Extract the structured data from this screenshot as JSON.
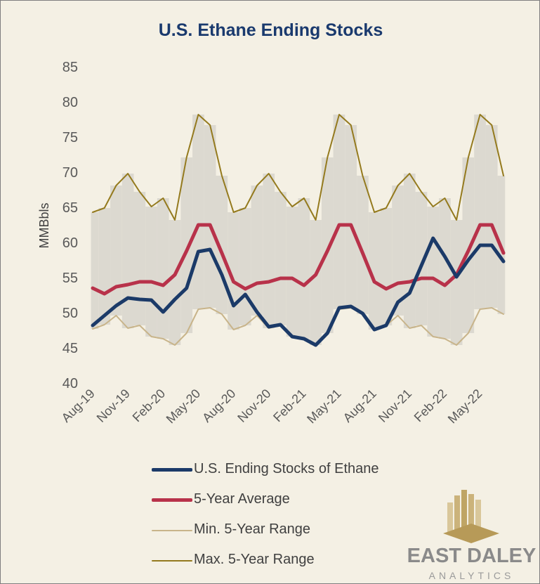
{
  "chart_data": {
    "type": "line",
    "title": "U.S. Ethane Ending Stocks",
    "ylabel": "MMBbls",
    "xlabel": "",
    "ylim": [
      40,
      85
    ],
    "yticks": [
      40,
      45,
      50,
      55,
      60,
      65,
      70,
      75,
      80,
      85
    ],
    "x": [
      "Aug-19",
      "Sep-19",
      "Oct-19",
      "Nov-19",
      "Dec-19",
      "Jan-20",
      "Feb-20",
      "Mar-20",
      "Apr-20",
      "May-20",
      "Jun-20",
      "Jul-20",
      "Aug-20",
      "Sep-20",
      "Oct-20",
      "Nov-20",
      "Dec-20",
      "Jan-21",
      "Feb-21",
      "Mar-21",
      "Apr-21",
      "May-21",
      "Jun-21",
      "Jul-21",
      "Aug-21",
      "Sep-21",
      "Oct-21",
      "Nov-21",
      "Dec-21",
      "Jan-22",
      "Feb-22",
      "Mar-22",
      "Apr-22",
      "May-22",
      "Jun-22",
      "Jul-22"
    ],
    "xtick_labels": [
      "Aug-19",
      "Nov-19",
      "Feb-20",
      "May-20",
      "Aug-20",
      "Nov-20",
      "Feb-21",
      "May-21",
      "Aug-21",
      "Nov-21",
      "Feb-22",
      "May-22"
    ],
    "xtick_index": [
      0,
      3,
      6,
      9,
      12,
      15,
      18,
      21,
      24,
      27,
      30,
      33
    ],
    "grid": false,
    "legend_position": "bottom",
    "range_fill": {
      "color": "#dcd9d0",
      "lower": "Min. 5-Year Range",
      "upper": "Max. 5-Year Range"
    },
    "series": [
      {
        "name": "U.S. Ending Stocks of Ethane",
        "color": "#1b3a68",
        "width": 5,
        "values": [
          48.2,
          49.6,
          51.0,
          52.1,
          51.9,
          51.8,
          50.1,
          51.9,
          53.5,
          58.7,
          59.0,
          55.4,
          51.0,
          52.6,
          50.1,
          48.0,
          48.3,
          46.6,
          46.3,
          45.4,
          47.1,
          50.7,
          50.9,
          49.9,
          47.6,
          48.2,
          51.5,
          52.8,
          56.7,
          60.6,
          58.0,
          55.1,
          57.5,
          59.6,
          59.6,
          57.3
        ]
      },
      {
        "name": "5-Year Average",
        "color": "#b8324a",
        "width": 5,
        "values": [
          53.5,
          52.7,
          53.7,
          54.0,
          54.4,
          54.4,
          53.9,
          55.4,
          58.8,
          62.5,
          62.5,
          58.5,
          54.4,
          53.4,
          54.2,
          54.4,
          54.9,
          54.9,
          53.9,
          55.4,
          58.8,
          62.5,
          62.5,
          58.5,
          54.4,
          53.4,
          54.2,
          54.4,
          54.9,
          54.9,
          53.9,
          55.4,
          58.8,
          62.5,
          62.5,
          58.5
        ]
      },
      {
        "name": "Min. 5-Year Range",
        "color": "#c8b48a",
        "width": 2,
        "values": [
          47.7,
          48.3,
          49.6,
          47.8,
          48.2,
          46.6,
          46.3,
          45.4,
          47.1,
          50.5,
          50.7,
          49.8,
          47.6,
          48.2,
          49.6,
          47.8,
          48.2,
          46.6,
          46.3,
          45.4,
          47.1,
          50.5,
          50.7,
          49.8,
          47.6,
          48.2,
          49.6,
          47.8,
          48.2,
          46.6,
          46.3,
          45.4,
          47.1,
          50.5,
          50.7,
          49.8
        ]
      },
      {
        "name": "Max. 5-Year Range",
        "color": "#947a1e",
        "width": 2,
        "values": [
          64.3,
          64.9,
          68.1,
          69.8,
          67.2,
          65.1,
          66.3,
          63.2,
          72.1,
          78.2,
          76.7,
          69.5,
          64.3,
          64.9,
          68.1,
          69.8,
          67.2,
          65.1,
          66.3,
          63.2,
          72.1,
          78.2,
          76.7,
          69.5,
          64.3,
          64.9,
          68.1,
          69.8,
          67.2,
          65.1,
          66.3,
          63.2,
          72.1,
          78.2,
          76.7,
          69.5
        ]
      }
    ]
  },
  "logo": {
    "name": "EAST DALEY",
    "sub": "ANALYTICS"
  }
}
